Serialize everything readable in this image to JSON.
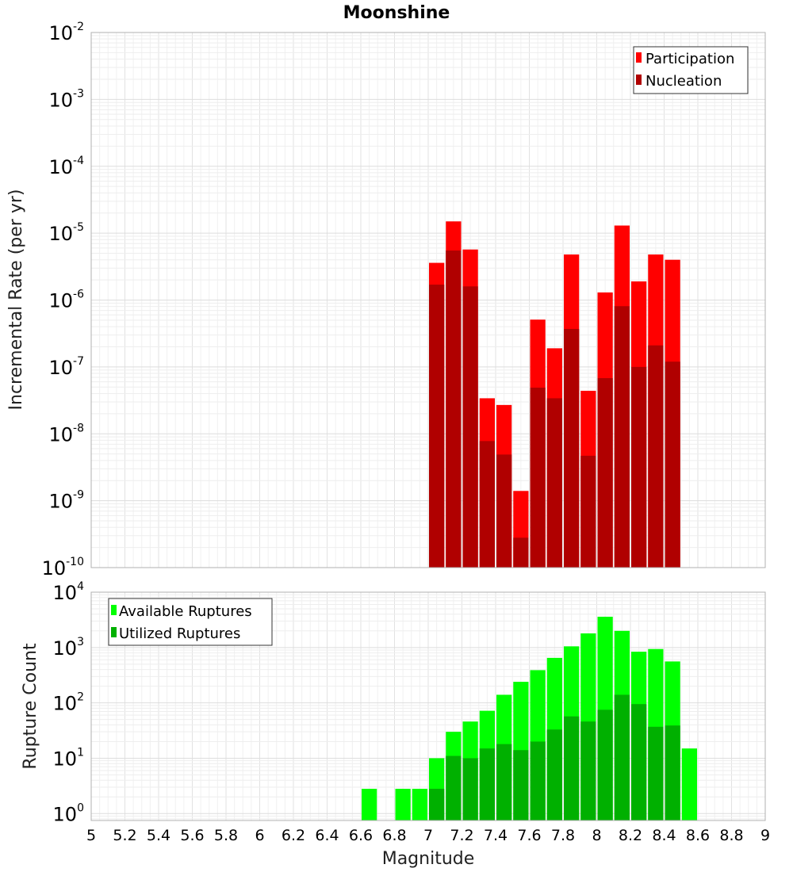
{
  "chart_data": [
    {
      "type": "bar",
      "title": "Moonshine",
      "ylabel": "Incremental Rate (per yr)",
      "yscale": "log",
      "ylim": [
        1e-10,
        0.01
      ],
      "xlim": [
        5,
        9
      ],
      "bar_width": 0.1,
      "grid": true,
      "legend_position": "top-right",
      "x": [
        7.05,
        7.15,
        7.25,
        7.35,
        7.45,
        7.55,
        7.65,
        7.75,
        7.85,
        7.95,
        8.05,
        8.15,
        8.25,
        8.35,
        8.45
      ],
      "series": [
        {
          "name": "Participation",
          "color": "#ff0000",
          "values": [
            3.6e-06,
            1.5e-05,
            5.7e-06,
            3.4e-08,
            2.7e-08,
            1.4e-09,
            5.1e-07,
            1.9e-07,
            4.8e-06,
            4.4e-08,
            1.3e-06,
            1.3e-05,
            1.9e-06,
            4.8e-06,
            4e-06
          ]
        },
        {
          "name": "Nucleation",
          "color": "#b00000",
          "values": [
            1.7e-06,
            5.5e-06,
            1.6e-06,
            7.8e-09,
            4.9e-09,
            2.8e-10,
            4.9e-08,
            3.4e-08,
            3.7e-07,
            4.7e-09,
            6.8e-08,
            8.1e-07,
            1e-07,
            2.1e-07,
            1.2e-07
          ]
        }
      ]
    },
    {
      "type": "bar",
      "title": "",
      "xlabel": "Magnitude",
      "ylabel": "Rupture Count",
      "yscale": "log",
      "ylim": [
        0.75,
        10000
      ],
      "xlim": [
        5,
        9
      ],
      "bar_width": 0.1,
      "grid": true,
      "legend_position": "top-left",
      "x": [
        6.65,
        6.85,
        6.95,
        7.05,
        7.15,
        7.25,
        7.35,
        7.45,
        7.55,
        7.65,
        7.75,
        7.85,
        7.95,
        8.05,
        8.15,
        8.25,
        8.35,
        8.45,
        8.55
      ],
      "series": [
        {
          "name": "Available Ruptures",
          "color": "#00ff00",
          "values": [
            2.8,
            2.8,
            2.8,
            10,
            30,
            46,
            72,
            140,
            240,
            390,
            650,
            1050,
            1800,
            3600,
            2000,
            840,
            940,
            560,
            15
          ]
        },
        {
          "name": "Utilized Ruptures",
          "color": "#00b000",
          "values": [
            0,
            0,
            0,
            2.8,
            11,
            10,
            15,
            18,
            14,
            20,
            33,
            57,
            46,
            75,
            140,
            95,
            37,
            39,
            0
          ]
        }
      ]
    }
  ],
  "x_ticks": [
    "5",
    "5.2",
    "5.4",
    "5.6",
    "5.8",
    "6",
    "6.2",
    "6.4",
    "6.6",
    "6.8",
    "7",
    "7.2",
    "7.4",
    "7.6",
    "7.8",
    "8",
    "8.2",
    "8.4",
    "8.6",
    "8.8",
    "9"
  ],
  "top_y_ticks": [
    {
      "base": "10",
      "exp": "-2"
    },
    {
      "base": "10",
      "exp": "-3"
    },
    {
      "base": "10",
      "exp": "-4"
    },
    {
      "base": "10",
      "exp": "-5"
    },
    {
      "base": "10",
      "exp": "-6"
    },
    {
      "base": "10",
      "exp": "-7"
    },
    {
      "base": "10",
      "exp": "-8"
    },
    {
      "base": "10",
      "exp": "-9"
    },
    {
      "base": "10",
      "exp": "-10"
    }
  ],
  "bottom_y_ticks": [
    {
      "base": "10",
      "exp": "4"
    },
    {
      "base": "10",
      "exp": "3"
    },
    {
      "base": "10",
      "exp": "2"
    },
    {
      "base": "10",
      "exp": "1"
    },
    {
      "base": "10",
      "exp": "0"
    }
  ]
}
